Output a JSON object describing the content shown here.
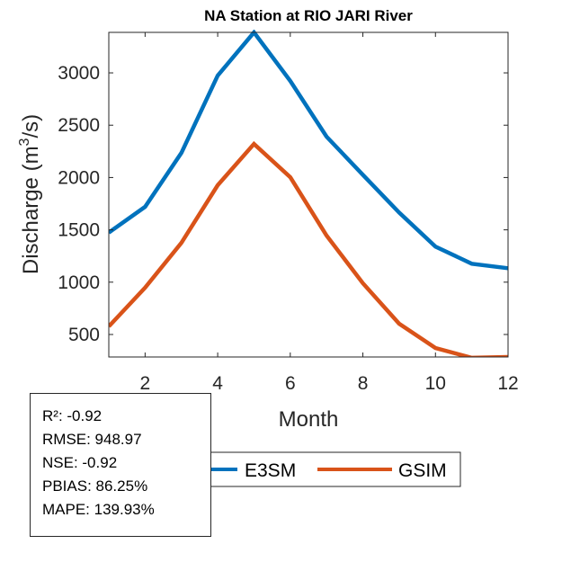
{
  "chart_data": {
    "type": "line",
    "title": "NA  Station at  RIO JARI  River",
    "xlabel": "Month",
    "ylabel": "Discharge (m³/s)",
    "ylabel_parts": {
      "main": "Discharge (m",
      "sup": "3",
      "tail": "/s)"
    },
    "xlim": [
      1,
      12
    ],
    "ylim": [
      285,
      3387
    ],
    "xticks": [
      2,
      4,
      6,
      8,
      10,
      12
    ],
    "yticks": [
      500,
      1000,
      1500,
      2000,
      2500,
      3000
    ],
    "grid": false,
    "x": [
      1,
      2,
      3,
      4,
      5,
      6,
      7,
      8,
      9,
      10,
      11,
      12
    ],
    "series": [
      {
        "name": "E3SM",
        "color": "#0072BD",
        "values": [
          1474,
          1720,
          2235,
          2974,
          3387,
          2923,
          2390,
          2026,
          1665,
          1340,
          1176,
          1133
        ]
      },
      {
        "name": "GSIM",
        "color": "#D95319",
        "values": [
          577,
          947,
          1376,
          1926,
          2321,
          2003,
          1445,
          990,
          603,
          371,
          277,
          285
        ]
      }
    ],
    "legend_placement": "bottom-center, horizontal"
  },
  "stats": {
    "r2": "R²: -0.92",
    "rmse": "RMSE: 948.97",
    "nse": "NSE: -0.92",
    "pbias": "PBIAS: 86.25%",
    "mape": "MAPE: 139.93%"
  }
}
